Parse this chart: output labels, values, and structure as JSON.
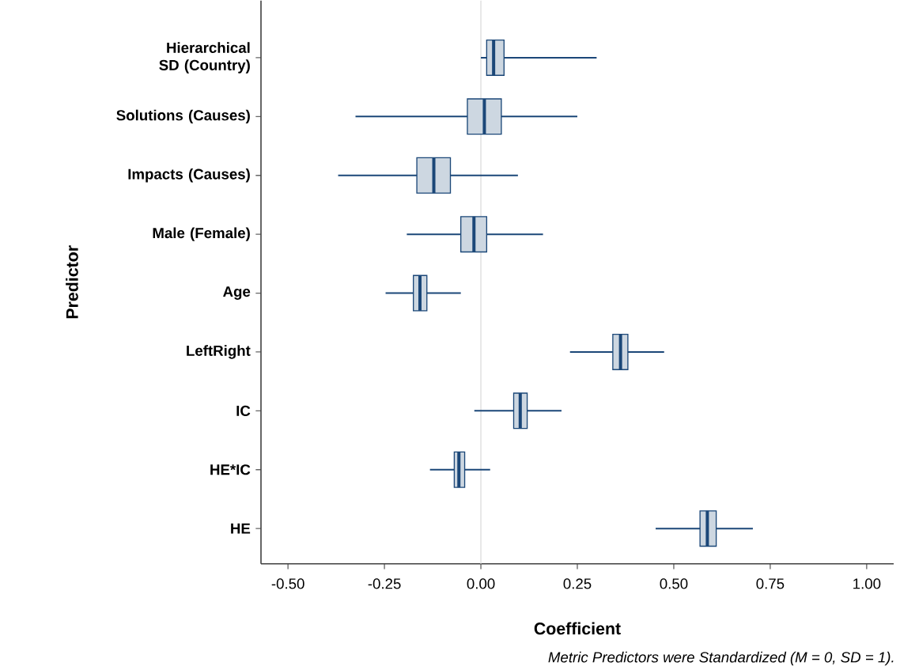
{
  "chart_data": {
    "type": "box",
    "orientation": "horizontal",
    "xlabel": "Coefficient",
    "ylabel": "Predictor",
    "categories": [
      "Hierarchical SD (Country)",
      "Solutions (Causes)",
      "Impacts (Causes)",
      "Male (Female)",
      "Age",
      "LeftRight",
      "IC",
      "HE*IC",
      "HE"
    ],
    "series": [
      {
        "color": "#1b4778",
        "boxes": [
          {
            "low": 0.0,
            "q1": 0.015,
            "median": 0.033,
            "q3": 0.06,
            "high": 0.3
          },
          {
            "low": -0.325,
            "q1": -0.035,
            "median": 0.009,
            "q3": 0.053,
            "high": 0.25
          },
          {
            "low": -0.37,
            "q1": -0.166,
            "median": -0.122,
            "q3": -0.079,
            "high": 0.096
          },
          {
            "low": -0.192,
            "q1": -0.052,
            "median": -0.018,
            "q3": 0.015,
            "high": 0.161
          },
          {
            "low": -0.247,
            "q1": -0.175,
            "median": -0.158,
            "q3": -0.14,
            "high": -0.052
          },
          {
            "low": 0.231,
            "q1": 0.342,
            "median": 0.362,
            "q3": 0.381,
            "high": 0.475
          },
          {
            "low": -0.017,
            "q1": 0.085,
            "median": 0.102,
            "q3": 0.12,
            "high": 0.209
          },
          {
            "low": -0.132,
            "q1": -0.069,
            "median": -0.057,
            "q3": -0.042,
            "high": 0.024
          },
          {
            "low": 0.453,
            "q1": 0.568,
            "median": 0.587,
            "q3": 0.61,
            "high": 0.705
          }
        ]
      }
    ],
    "xlim": [
      -0.57,
      1.07
    ],
    "xticks": [
      {
        "value": -0.5,
        "label": "-0.50"
      },
      {
        "value": -0.25,
        "label": "-0.25"
      },
      {
        "value": 0,
        "label": "0.00"
      },
      {
        "value": 0.25,
        "label": "0.25"
      },
      {
        "value": 0.5,
        "label": "0.50"
      },
      {
        "value": 0.75,
        "label": "0.75"
      },
      {
        "value": 1,
        "label": "1.00"
      }
    ],
    "ref_lines": [
      {
        "axis": "x",
        "value": 0,
        "color": "#dcdcdc"
      }
    ],
    "grid": false,
    "annotations": [
      "*Metric Predictors were Standardized (M = 0, SD = 1).*"
    ]
  }
}
